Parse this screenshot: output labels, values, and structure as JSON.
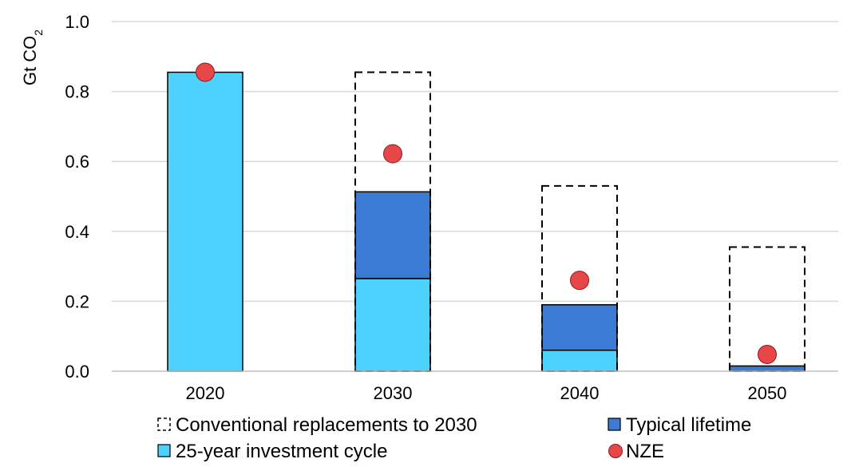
{
  "chart_data": {
    "type": "bar",
    "categories": [
      "2020",
      "2030",
      "2040",
      "2050"
    ],
    "ylabel": "Gt CO",
    "ylabel_subscript": "2",
    "ylim": [
      0,
      1.0
    ],
    "yticks": [
      0,
      0.2,
      0.4,
      0.6,
      0.8,
      1.0
    ],
    "ytick_labels": [
      "0.0",
      "0.2",
      "0.4",
      "0.6",
      "0.8",
      "1.0"
    ],
    "grid": true,
    "legend_placement": "bottom",
    "series": [
      {
        "name": "25-year investment cycle",
        "kind": "stacked-bar",
        "color": "#4dd2ff",
        "values": [
          0.855,
          0.265,
          0.06,
          0.0
        ]
      },
      {
        "name": "Typical lifetime",
        "kind": "stacked-bar",
        "color": "#3b7bd4",
        "values": [
          0.0,
          0.248,
          0.13,
          0.015
        ]
      },
      {
        "name": "Conventional replacements to 2030",
        "kind": "dashed-outline-bar",
        "color": "#000000",
        "values": [
          null,
          0.855,
          0.53,
          0.355
        ]
      },
      {
        "name": "NZE",
        "kind": "marker",
        "color": "#e8474a",
        "values": [
          0.855,
          0.622,
          0.26,
          0.048
        ]
      }
    ]
  }
}
